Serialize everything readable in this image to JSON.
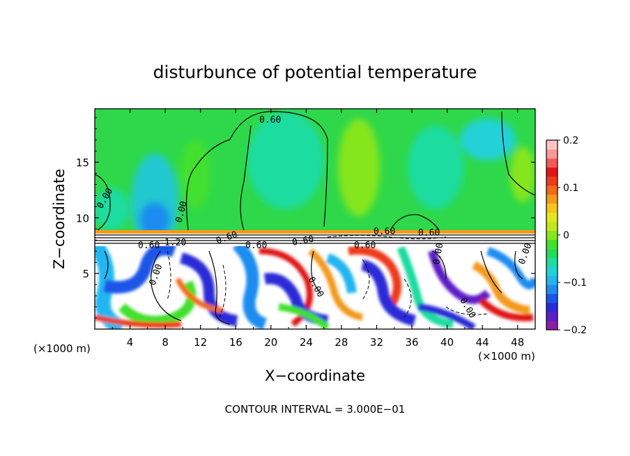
{
  "chart_data": {
    "type": "heatmap",
    "title": "disturbunce of potential temperature",
    "xlabel": "X−coordinate",
    "ylabel": "Z−coordinate",
    "x_unit": "(×1000 m)",
    "x_unit_right": "(×1000 m)",
    "xlim": [
      0,
      50
    ],
    "ylim": [
      0,
      19.8
    ],
    "x_ticks": [
      "4",
      "8",
      "12",
      "16",
      "20",
      "24",
      "28",
      "32",
      "36",
      "40",
      "44",
      "48"
    ],
    "y_ticks": [
      "5",
      "10",
      "15"
    ],
    "colorbar": {
      "range": [
        -0.2,
        0.2
      ],
      "ticks": [
        "0.2",
        "0.1",
        "0",
        "−0.1",
        "−0.2"
      ],
      "colors": [
        "#8b1fa6",
        "#5d1fc6",
        "#2a2ad8",
        "#1a55e8",
        "#1f8cf0",
        "#22b6f0",
        "#21d2d8",
        "#1fdca0",
        "#2ada5a",
        "#43e02e",
        "#86e61d",
        "#c3e61a",
        "#e6e61c",
        "#f3c61a",
        "#f39a1a",
        "#f06a1a",
        "#ec3a1a",
        "#e01414",
        "#f25a5a",
        "#f79999",
        "#fbc4c4"
      ]
    },
    "contour_labels": [
      "0.60",
      "0.60",
      "0.60",
      "0.60",
      "0.60",
      "0.60",
      "0.00",
      "0.00",
      "0.00",
      "0.00",
      "0.00",
      "0.00",
      "0.00",
      "0.60",
      "1.20",
      "0.60"
    ],
    "footer": "CONTOUR INTERVAL = 3.000E−01",
    "grid": false,
    "legend": "right"
  }
}
